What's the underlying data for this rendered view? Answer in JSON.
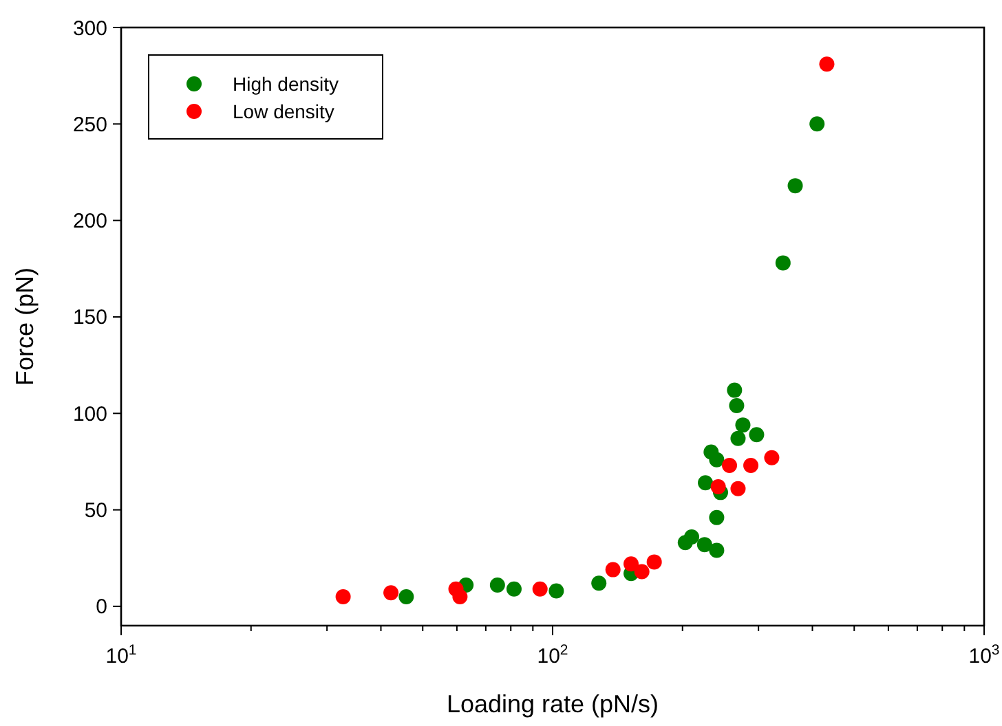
{
  "chart_data": {
    "type": "scatter",
    "xlabel": "Loading rate (pN/s)",
    "ylabel": "Force (pN)",
    "log": "x",
    "xlim": [
      10,
      1000
    ],
    "xticks": [
      {
        "value": 10,
        "label": "10$^{1}$"
      },
      {
        "value": 100,
        "label": "10$^{2}$"
      },
      {
        "value": 1000,
        "label": "10$^{3}$"
      }
    ],
    "ylim": [
      -10,
      300
    ],
    "yticks": [
      0,
      50,
      100,
      150,
      200,
      250,
      300
    ],
    "grid": false,
    "legend": "top left",
    "marker": "circle",
    "series": [
      {
        "name": "High density",
        "color": "#008000",
        "x": [
          45.8,
          63,
          74.5,
          81.4,
          102,
          128,
          152,
          203,
          210,
          225,
          240,
          240,
          226,
          245,
          233,
          240,
          264,
          267,
          276,
          269,
          297,
          342,
          365,
          410
        ],
        "values": [
          5,
          11,
          11,
          9,
          8,
          12,
          17,
          33,
          36,
          32,
          29,
          46,
          64,
          59,
          80,
          76,
          112,
          104,
          94,
          87,
          89,
          178,
          218,
          250
        ]
      },
      {
        "name": "Low density",
        "color": "#ff0000",
        "x": [
          32.7,
          42.2,
          59.7,
          61,
          93.5,
          138,
          152,
          161,
          172,
          242,
          257,
          269,
          288,
          322,
          432
        ],
        "values": [
          5,
          7,
          9,
          5,
          9,
          19,
          22,
          18,
          23,
          62,
          73,
          61,
          73,
          77,
          281
        ]
      }
    ]
  }
}
